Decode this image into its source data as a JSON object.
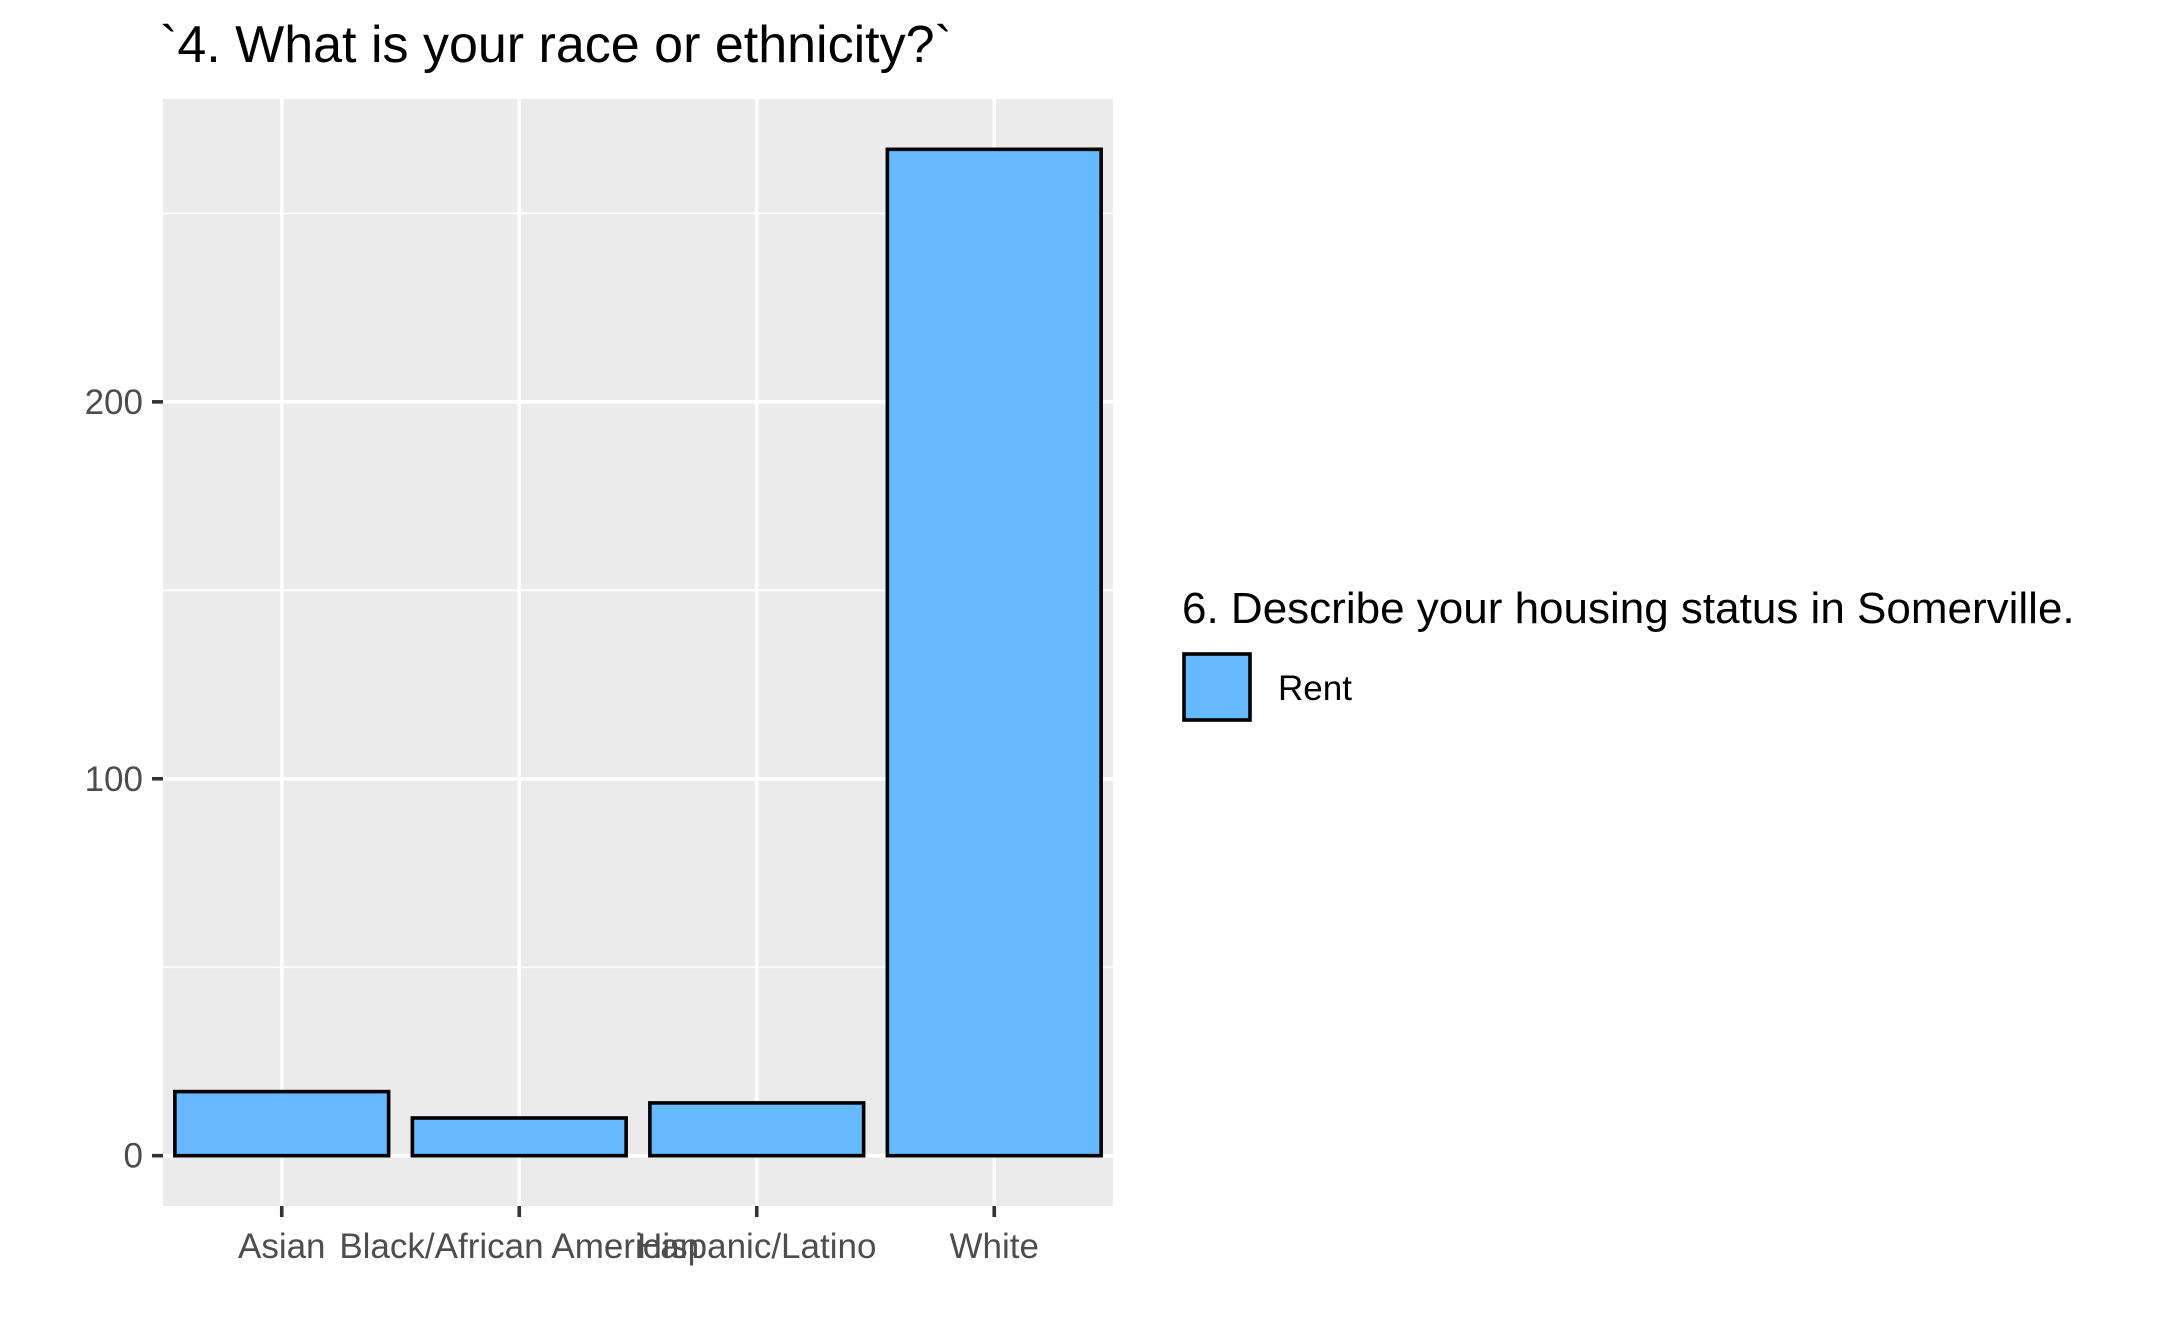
{
  "chart_data": {
    "type": "bar",
    "title": "`4. What is your race or ethnicity?`",
    "xlabel": "",
    "ylabel": "",
    "categories": [
      "Asian",
      "Black/African American",
      "Hispanic/Latino",
      "White"
    ],
    "series": [
      {
        "name": "Rent",
        "values": [
          17,
          10,
          14,
          267
        ]
      }
    ],
    "ylim": [
      -13.35,
      280.35
    ],
    "yticks": [
      0,
      100,
      200
    ],
    "ytick_labels": [
      "0",
      "100",
      "200"
    ],
    "yminor": [
      50,
      150,
      250
    ],
    "grid": true,
    "legend": {
      "title": "6. Describe your housing status in Somerville.",
      "position": "right",
      "entries": [
        {
          "label": "Rent",
          "color": "#66b8ff"
        }
      ]
    },
    "colors": {
      "bar_fill": "#66b8ff",
      "bar_stroke": "#000000",
      "panel_bg": "#ebebeb",
      "grid": "#ffffff"
    }
  }
}
